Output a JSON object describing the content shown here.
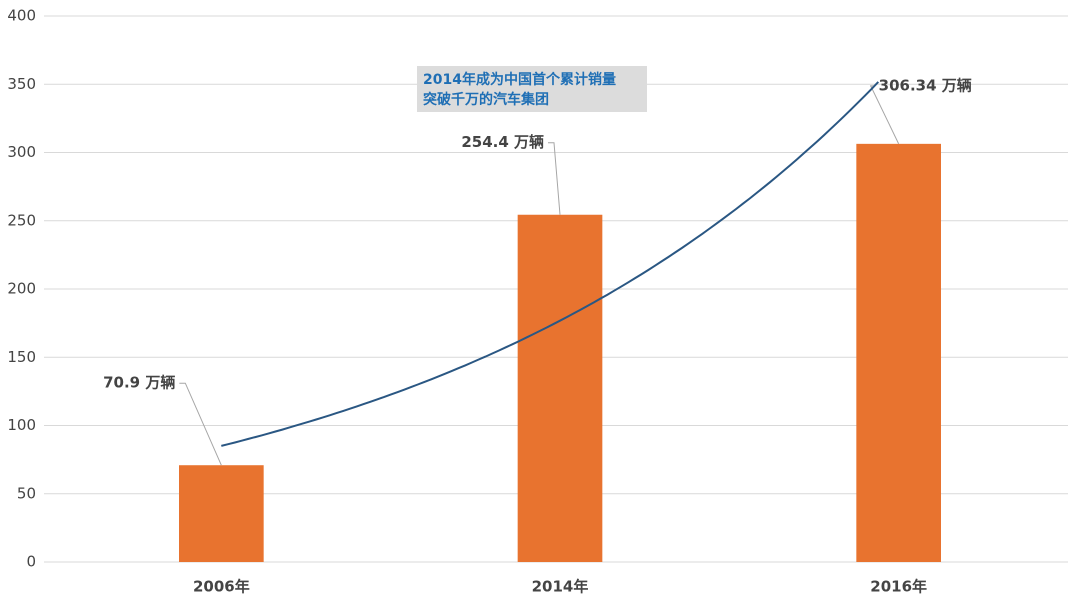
{
  "chart_data": {
    "type": "bar",
    "categories": [
      "2006年",
      "2014年",
      "2016年"
    ],
    "values": [
      70.9,
      254.4,
      306.34
    ],
    "value_labels": [
      "70.9 万辆",
      "254.4 万辆",
      "306.34 万辆"
    ],
    "color": "#e8732f",
    "ylim": [
      0,
      400
    ],
    "yticks": [
      0,
      50,
      100,
      150,
      200,
      250,
      300,
      350,
      400
    ],
    "grid": true,
    "trendline": "exponential",
    "trendline_color": "#2a5783",
    "annotation": [
      "2014年成为中国首个累计销量",
      "突破千万的汽车集团"
    ]
  }
}
